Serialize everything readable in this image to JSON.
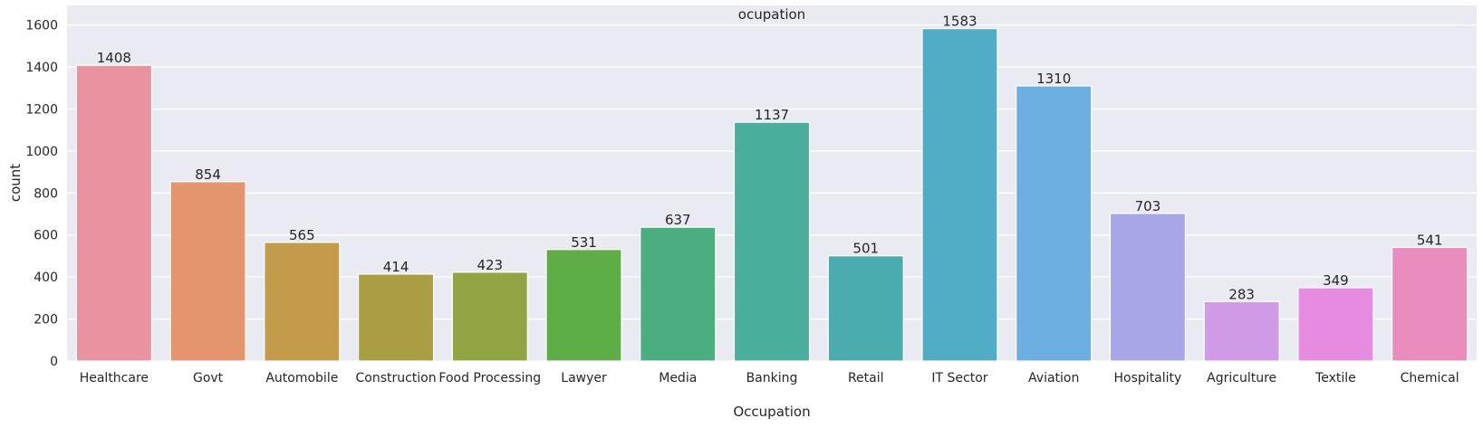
{
  "chart_data": {
    "type": "bar",
    "title": "ocupation",
    "xlabel": "Occupation",
    "ylabel": "count",
    "ylim": [
      0,
      1650
    ],
    "yticks": [
      0,
      200,
      400,
      600,
      800,
      1000,
      1200,
      1400,
      1600
    ],
    "grid": true,
    "background": "#eaeaf2",
    "categories": [
      "Healthcare",
      "Govt",
      "Automobile",
      "Construction",
      "Food Processing",
      "Lawyer",
      "Media",
      "Banking",
      "Retail",
      "IT Sector",
      "Aviation",
      "Hospitality",
      "Agriculture",
      "Textile",
      "Chemical"
    ],
    "values": [
      1408,
      854,
      565,
      414,
      423,
      531,
      637,
      1137,
      501,
      1583,
      1310,
      703,
      283,
      349,
      541
    ],
    "colors": [
      "#e8939f",
      "#e3956d",
      "#c49a4b",
      "#aa9e45",
      "#92a545",
      "#5fad47",
      "#4bae80",
      "#4aae9d",
      "#4bacb0",
      "#51adc6",
      "#6caedf",
      "#a9a6e8",
      "#cf9ae6",
      "#e68bdf",
      "#e88dbe"
    ]
  }
}
